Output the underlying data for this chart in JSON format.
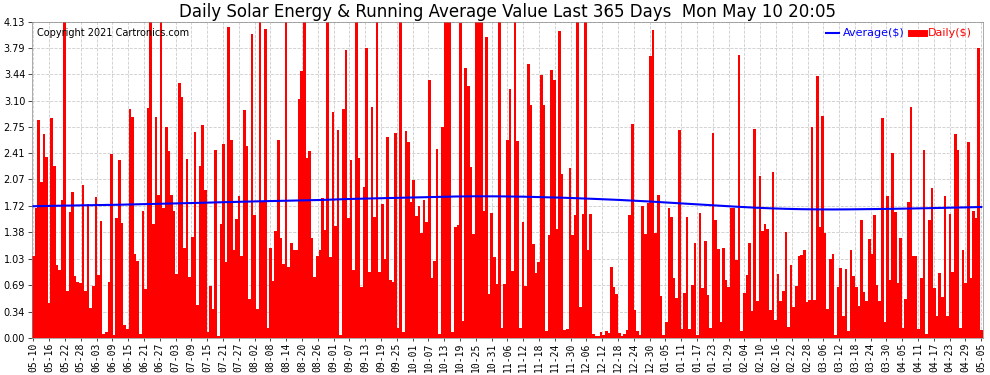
{
  "title": "Daily Solar Energy & Running Average Value Last 365 Days  Mon May 10 20:05",
  "copyright": "Copyright 2021 Cartronics.com",
  "legend_avg": "Average($)",
  "legend_daily": "Daily($)",
  "yticks": [
    0.0,
    0.34,
    0.69,
    1.03,
    1.38,
    1.72,
    2.07,
    2.41,
    2.75,
    3.1,
    3.44,
    3.79,
    4.13
  ],
  "ylim": [
    0.0,
    4.13
  ],
  "bar_color": "#FF0000",
  "avg_color": "#0000FF",
  "background_color": "#FFFFFF",
  "grid_color": "#CCCCCC",
  "title_fontsize": 12,
  "copyright_fontsize": 7,
  "tick_fontsize": 7,
  "xtick_labels": [
    "05-10",
    "05-16",
    "05-22",
    "05-28",
    "06-03",
    "06-09",
    "06-15",
    "06-21",
    "06-27",
    "07-03",
    "07-09",
    "07-15",
    "07-21",
    "07-27",
    "08-02",
    "08-08",
    "08-14",
    "08-20",
    "08-26",
    "09-01",
    "09-07",
    "09-13",
    "09-19",
    "09-25",
    "10-01",
    "10-07",
    "10-13",
    "10-19",
    "10-25",
    "10-31",
    "11-06",
    "11-12",
    "11-18",
    "11-24",
    "11-30",
    "12-06",
    "12-12",
    "12-18",
    "12-24",
    "12-30",
    "01-05",
    "01-11",
    "01-17",
    "01-23",
    "01-29",
    "02-04",
    "02-10",
    "02-16",
    "02-22",
    "02-28",
    "03-06",
    "03-12",
    "03-18",
    "03-24",
    "03-30",
    "04-05",
    "04-11",
    "04-17",
    "04-23",
    "04-29",
    "05-05"
  ],
  "avg_values": [
    1.72,
    1.725,
    1.728,
    1.73,
    1.735,
    1.738,
    1.742,
    1.748,
    1.752,
    1.756,
    1.762,
    1.768,
    1.772,
    1.778,
    1.783,
    1.788,
    1.792,
    1.796,
    1.8,
    1.808,
    1.815,
    1.82,
    1.825,
    1.83,
    1.835,
    1.84,
    1.845,
    1.848,
    1.85,
    1.85,
    1.848,
    1.845,
    1.84,
    1.835,
    1.828,
    1.82,
    1.812,
    1.803,
    1.793,
    1.782,
    1.77,
    1.758,
    1.745,
    1.732,
    1.72,
    1.708,
    1.698,
    1.69,
    1.684,
    1.68,
    1.678,
    1.678,
    1.68,
    1.682,
    1.685,
    1.688,
    1.692,
    1.696,
    1.7,
    1.705,
    1.71
  ]
}
